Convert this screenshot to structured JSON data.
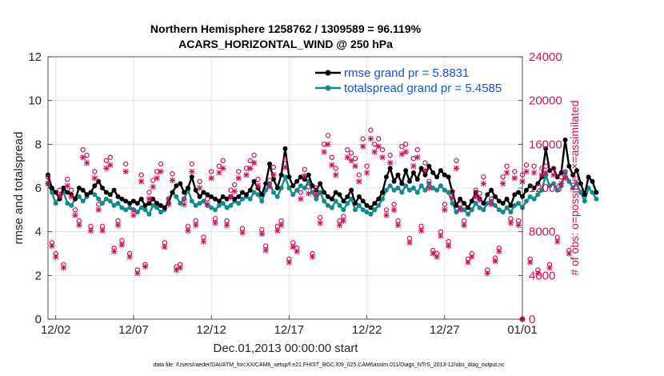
{
  "chart_data": {
    "type": "line",
    "title": [
      "Northern Hemisphere 1258762 / 1309589 = 96.119%",
      "ACARS_HORIZONTAL_WIND @ 250 hPa"
    ],
    "xlabel": "Dec.01,2013 00:00:00 start",
    "ylabel": "rmse and totalspread",
    "ylabel_right": "# of obs: o=possible; ×=assimilated",
    "footnote": "data file: /Users/raeder/DAI/ATM_forcXX/CAM6_setup/f.e21.FHIST_BGC.f09_025.CAM6assim.011/Diags_NTrS_2013-12/obs_diag_output.nc",
    "xlim": [
      1.5,
      32.0
    ],
    "ylim": [
      0,
      12
    ],
    "ylim_right": [
      0,
      24000
    ],
    "x_ticks": [
      2,
      7,
      12,
      17,
      22,
      27,
      32
    ],
    "x_tick_labels": [
      "12/02",
      "12/07",
      "12/12",
      "12/17",
      "12/22",
      "12/27",
      "01/01"
    ],
    "y_ticks": [
      "0",
      "2",
      "4",
      "6",
      "8",
      "10",
      "12"
    ],
    "y_right_ticks": [
      "0",
      "4000",
      "8000",
      "12000",
      "16000",
      "20000",
      "24000"
    ],
    "x_start": 1.5,
    "x_step": 0.25,
    "series": [
      {
        "name": "rmse grand pr = 5.8831",
        "color": "#000000",
        "axis": "left",
        "values": [
          6.6,
          6.0,
          5.8,
          5.5,
          6.0,
          5.8,
          5.7,
          5.5,
          6.0,
          5.9,
          5.7,
          5.8,
          6.1,
          6.3,
          6.0,
          5.8,
          5.7,
          5.9,
          5.6,
          5.5,
          5.4,
          5.3,
          5.4,
          5.3,
          5.5,
          5.2,
          5.3,
          5.5,
          5.3,
          5.2,
          5.1,
          5.3,
          5.8,
          6.1,
          6.2,
          5.8,
          6.0,
          6.5,
          5.9,
          5.6,
          5.8,
          5.7,
          5.6,
          5.5,
          5.4,
          5.6,
          5.5,
          5.6,
          5.5,
          5.6,
          5.8,
          5.7,
          5.9,
          6.3,
          6.0,
          5.7,
          6.2,
          7.1,
          6.4,
          6.0,
          6.6,
          7.8,
          6.5,
          6.1,
          6.3,
          6.5,
          6.4,
          6.6,
          6.1,
          5.9,
          6.2,
          5.8,
          5.6,
          5.5,
          5.8,
          5.7,
          5.4,
          5.6,
          5.9,
          5.3,
          5.6,
          5.4,
          5.2,
          5.1,
          5.3,
          5.5,
          5.8,
          6.5,
          6.9,
          6.3,
          6.6,
          6.2,
          6.8,
          6.3,
          6.7,
          6.4,
          6.9,
          6.6,
          7.0,
          6.7,
          6.5,
          6.8,
          6.6,
          6.5,
          5.8,
          5.2,
          5.5,
          5.3,
          5.1,
          5.4,
          5.8,
          5.5,
          5.3,
          5.7,
          5.9,
          5.6,
          5.4,
          5.3,
          5.5,
          5.2,
          5.7,
          5.8,
          5.6,
          5.9,
          6.1,
          6.0,
          6.2,
          6.5,
          7.8,
          6.8,
          6.9,
          6.5,
          6.7,
          8.2,
          7.0,
          6.6,
          6.8,
          6.2,
          5.7,
          6.5,
          6.3,
          5.8
        ]
      },
      {
        "name": "totalspread grand pr = 5.4585",
        "color": "#128b8b",
        "axis": "left",
        "values": [
          6.2,
          5.8,
          5.3,
          5.6,
          5.8,
          5.3,
          5.2,
          5.5,
          5.6,
          5.4,
          5.6,
          5.8,
          5.7,
          5.5,
          5.3,
          5.5,
          5.4,
          5.2,
          5.3,
          5.1,
          5.0,
          5.1,
          5.0,
          4.9,
          5.1,
          5.0,
          4.8,
          5.2,
          5.1,
          4.9,
          5.0,
          5.5,
          5.8,
          5.6,
          5.3,
          5.5,
          5.9,
          5.4,
          5.2,
          5.3,
          5.4,
          5.2,
          5.1,
          5.0,
          5.2,
          5.3,
          5.1,
          5.2,
          5.4,
          5.3,
          5.5,
          5.6,
          5.5,
          5.8,
          5.7,
          5.4,
          5.9,
          6.2,
          5.8,
          5.6,
          6.0,
          6.5,
          6.0,
          5.7,
          5.9,
          6.1,
          6.0,
          6.3,
          5.8,
          5.5,
          5.8,
          5.4,
          5.2,
          5.1,
          5.4,
          5.2,
          5.0,
          5.3,
          5.5,
          5.0,
          5.2,
          5.0,
          4.9,
          4.8,
          5.0,
          5.2,
          5.5,
          5.9,
          6.1,
          5.9,
          6.0,
          5.8,
          6.1,
          5.9,
          6.0,
          5.8,
          6.1,
          5.9,
          6.2,
          6.0,
          5.9,
          6.1,
          5.9,
          5.8,
          5.3,
          4.9,
          5.1,
          5.0,
          4.8,
          5.0,
          5.3,
          5.1,
          5.0,
          5.3,
          5.4,
          5.2,
          5.0,
          4.9,
          5.1,
          4.9,
          5.2,
          5.3,
          5.1,
          5.4,
          5.6,
          5.5,
          5.7,
          5.9,
          6.6,
          6.1,
          6.2,
          5.9,
          6.1,
          6.7,
          6.3,
          6.0,
          6.2,
          5.8,
          5.4,
          6.0,
          5.8,
          5.5
        ]
      }
    ],
    "obs_possible": {
      "color": "#d0105f",
      "axis": "right",
      "marker": "o",
      "values": [
        13000,
        7000,
        6000,
        11800,
        5000,
        12800,
        11800,
        10000,
        9000,
        15500,
        15000,
        8500,
        13500,
        10500,
        8500,
        14500,
        14800,
        6500,
        9000,
        7200,
        14200,
        6000,
        10000,
        4500,
        13200,
        5000,
        11600,
        12700,
        13500,
        14200,
        7000,
        11000,
        13300,
        4800,
        5000,
        11000,
        8500,
        14200,
        9000,
        12600,
        7500,
        11000,
        13500,
        9200,
        14000,
        14500,
        9000,
        11800,
        12300,
        13500,
        8300,
        13800,
        14500,
        15000,
        12800,
        8200,
        6700,
        12700,
        13900,
        8500,
        9000,
        14600,
        5500,
        7000,
        6500,
        11600,
        13700,
        12100,
        6000,
        12000,
        9300,
        16000,
        16800,
        14800,
        13800,
        9000,
        9400,
        15500,
        15200,
        14700,
        13200,
        16500,
        14000,
        17300,
        16000,
        16500,
        15500,
        10000,
        15000,
        10500,
        9000,
        15800,
        16000,
        7400,
        14700,
        15500,
        8500,
        14300,
        12600,
        6300,
        6000,
        8000,
        10500,
        7100,
        11700,
        14500,
        10500,
        9000,
        5500,
        6000,
        11800,
        11500,
        13000,
        4500,
        11000,
        5600,
        6500,
        13000,
        14000,
        9200,
        13500,
        9000,
        13200,
        14100,
        5500,
        14000,
        4500,
        13800,
        14000,
        5000,
        13800,
        7500,
        13000,
        13500,
        6300
      ]
    },
    "obs_assimilated": {
      "color": "#d0105f",
      "axis": "right",
      "marker": "x",
      "values": [
        12400,
        6700,
        5700,
        11300,
        4700,
        12200,
        11200,
        9500,
        8600,
        14800,
        14300,
        8100,
        12900,
        10000,
        8100,
        13800,
        14100,
        6200,
        8600,
        6800,
        13500,
        5700,
        9500,
        4200,
        12600,
        4800,
        11000,
        12100,
        12900,
        13500,
        6600,
        10500,
        12700,
        4500,
        4700,
        10500,
        8100,
        13500,
        8600,
        12000,
        7100,
        10500,
        12900,
        8800,
        13400,
        13800,
        8600,
        11200,
        11700,
        12900,
        7900,
        13200,
        13800,
        14300,
        12200,
        7800,
        6300,
        12100,
        13200,
        8100,
        8600,
        13900,
        5200,
        6600,
        6200,
        11000,
        13100,
        11500,
        5700,
        11400,
        8800,
        15300,
        16000,
        14100,
        13200,
        8600,
        9000,
        14800,
        14500,
        14000,
        12600,
        15800,
        13400,
        16500,
        15300,
        15800,
        14800,
        9500,
        14300,
        10000,
        8600,
        15100,
        15300,
        7000,
        14000,
        14800,
        8100,
        13600,
        12000,
        6000,
        5700,
        7600,
        10000,
        6700,
        11100,
        13800,
        10000,
        8600,
        5200,
        5700,
        11200,
        10900,
        12400,
        4200,
        10500,
        5300,
        6200,
        12400,
        13400,
        8800,
        12900,
        8600,
        12600,
        13500,
        5200,
        13400,
        4200,
        13200,
        13400,
        4700,
        13200,
        7100,
        12400,
        12900,
        6000
      ]
    },
    "legend_position": "top-right"
  }
}
